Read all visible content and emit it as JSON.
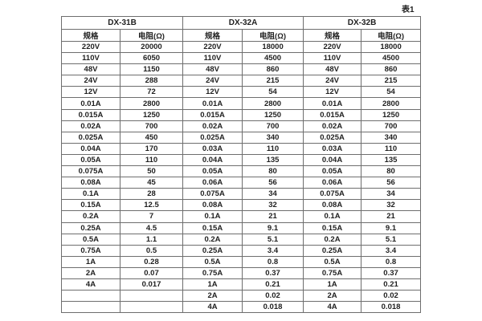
{
  "table": {
    "caption": "表1",
    "groups": [
      {
        "label": "DX-31B"
      },
      {
        "label": "DX-32A"
      },
      {
        "label": "DX-32B"
      }
    ],
    "subheaders": [
      "规格",
      "电阻(Ω)"
    ],
    "rows": [
      [
        "220V",
        "20000",
        "220V",
        "18000",
        "220V",
        "18000"
      ],
      [
        "110V",
        "6050",
        "110V",
        "4500",
        "110V",
        "4500"
      ],
      [
        "48V",
        "1150",
        "48V",
        "860",
        "48V",
        "860"
      ],
      [
        "24V",
        "288",
        "24V",
        "215",
        "24V",
        "215"
      ],
      [
        "12V",
        "72",
        "12V",
        "54",
        "12V",
        "54"
      ],
      [
        "0.01A",
        "2800",
        "0.01A",
        "2800",
        "0.01A",
        "2800"
      ],
      [
        "0.015A",
        "1250",
        "0.015A",
        "1250",
        "0.015A",
        "1250"
      ],
      [
        "0.02A",
        "700",
        "0.02A",
        "700",
        "0.02A",
        "700"
      ],
      [
        "0.025A",
        "450",
        "0.025A",
        "340",
        "0.025A",
        "340"
      ],
      [
        "0.04A",
        "170",
        "0.03A",
        "110",
        "0.03A",
        "110"
      ],
      [
        "0.05A",
        "110",
        "0.04A",
        "135",
        "0.04A",
        "135"
      ],
      [
        "0.075A",
        "50",
        "0.05A",
        "80",
        "0.05A",
        "80"
      ],
      [
        "0.08A",
        "45",
        "0.06A",
        "56",
        "0.06A",
        "56"
      ],
      [
        "0.1A",
        "28",
        "0.075A",
        "34",
        "0.075A",
        "34"
      ],
      [
        "0.15A",
        "12.5",
        "0.08A",
        "32",
        "0.08A",
        "32"
      ],
      [
        "0.2A",
        "7",
        "0.1A",
        "21",
        "0.1A",
        "21"
      ],
      [
        "0.25A",
        "4.5",
        "0.15A",
        "9.1",
        "0.15A",
        "9.1"
      ],
      [
        "0.5A",
        "1.1",
        "0.2A",
        "5.1",
        "0.2A",
        "5.1"
      ],
      [
        "0.75A",
        "0.5",
        "0.25A",
        "3.4",
        "0.25A",
        "3.4"
      ],
      [
        "1A",
        "0.28",
        "0.5A",
        "0.8",
        "0.5A",
        "0.8"
      ],
      [
        "2A",
        "0.07",
        "0.75A",
        "0.37",
        "0.75A",
        "0.37"
      ],
      [
        "4A",
        "0.017",
        "1A",
        "0.21",
        "1A",
        "0.21"
      ],
      [
        "",
        "",
        "2A",
        "0.02",
        "2A",
        "0.02"
      ],
      [
        "",
        "",
        "4A",
        "0.018",
        "4A",
        "0.018"
      ]
    ]
  },
  "colors": {
    "background": "#ffffff",
    "border": "#6e6e6e",
    "border_heavy": "#575757",
    "text": "#1f1f1f"
  }
}
